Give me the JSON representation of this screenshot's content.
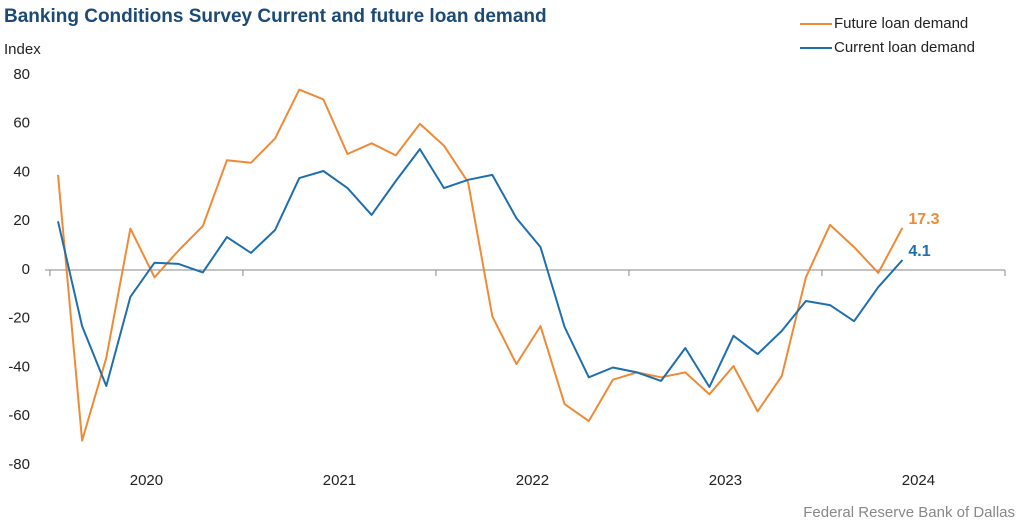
{
  "chart_data": {
    "type": "line",
    "title": "Banking Conditions Survey Current and future loan demand",
    "y_label": "Index",
    "source": "Federal Reserve Bank of Dallas",
    "categories": [
      "2020",
      null,
      null,
      null,
      null,
      null,
      null,
      null,
      "2021",
      null,
      null,
      null,
      null,
      null,
      null,
      null,
      "2022",
      null,
      null,
      null,
      null,
      null,
      null,
      null,
      "2023",
      null,
      null,
      null,
      null,
      null,
      null,
      null,
      "2024",
      null,
      null,
      null
    ],
    "series": [
      {
        "name": "Future loan demand",
        "color": "#ef8a36",
        "values": [
          39,
          -70,
          -36,
          17,
          -3,
          8,
          18,
          45,
          44,
          54,
          74,
          70,
          47.6,
          52,
          47,
          60,
          51,
          36,
          -19,
          -38.6,
          -23,
          -55,
          -62,
          -45,
          -42,
          -44,
          -42,
          -51,
          -39.4,
          -58,
          -43.5,
          -3,
          18.5,
          9.4,
          -1.2,
          17.3
        ]
      },
      {
        "name": "Current loan demand",
        "color": "#1f6fad",
        "values": [
          20,
          -23,
          -47.6,
          -11,
          3,
          2.5,
          -1,
          13.5,
          7,
          16.4,
          37.7,
          40.6,
          33.6,
          22.6,
          36.5,
          49.6,
          33.6,
          37,
          39,
          21.3,
          9.4,
          -23.4,
          -44,
          -40,
          -42,
          -45.5,
          -32,
          -48,
          -27,
          -34.5,
          -25,
          -12.7,
          -14.4,
          -21,
          -7,
          4.1
        ]
      }
    ],
    "ylim": [
      -80,
      80
    ],
    "yticks": [
      -80,
      -60,
      -40,
      -20,
      0,
      20,
      40,
      60,
      80
    ],
    "grid": false,
    "show_last_value": true,
    "legend": "top-right"
  }
}
